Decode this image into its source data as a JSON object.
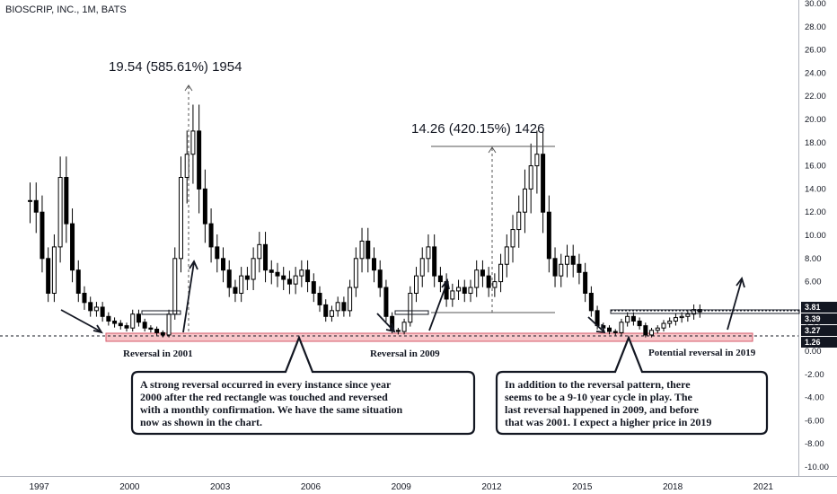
{
  "chart_title": "BIOSCRIP, INC., 1M, BATS",
  "chart_data": {
    "type": "candlestick",
    "title": "BIOSCRIP, INC., 1M, BATS",
    "ylim": [
      -10,
      30
    ],
    "yticks": [
      "30.00",
      "28.00",
      "26.00",
      "24.00",
      "22.00",
      "20.00",
      "18.00",
      "16.00",
      "14.00",
      "12.00",
      "10.00",
      "8.00",
      "6.00",
      "4.00",
      "2.00",
      "0.00",
      "-2.00",
      "-4.00",
      "-6.00",
      "-8.00",
      "-10.00"
    ],
    "xticks": [
      "1997",
      "2000",
      "2003",
      "2006",
      "2009",
      "2012",
      "2015",
      "2018",
      "2021"
    ],
    "series": [
      {
        "values_x": [
          1996.7,
          1996.9,
          1997.1,
          1997.3,
          1997.5,
          1997.7,
          1997.9,
          1998.1,
          1998.3,
          1998.5,
          1998.7,
          1998.9,
          1999.1,
          1999.3,
          1999.5,
          1999.7,
          1999.9,
          2000.1,
          2000.3,
          2000.5,
          2000.7,
          2000.9,
          2001.1,
          2001.3,
          2001.5,
          2001.7,
          2001.9,
          2002.1,
          2002.3,
          2002.5,
          2002.7,
          2002.9,
          2003.1,
          2003.3,
          2003.5,
          2003.7,
          2003.9,
          2004.1,
          2004.3,
          2004.5,
          2004.7,
          2004.9,
          2005.1,
          2005.3,
          2005.5,
          2005.7,
          2005.9,
          2006.1,
          2006.3,
          2006.5,
          2006.7,
          2006.9,
          2007.1,
          2007.3,
          2007.5,
          2007.7,
          2007.9,
          2008.1,
          2008.3,
          2008.5,
          2008.7,
          2008.9,
          2009.1,
          2009.3,
          2009.5,
          2009.7,
          2009.9,
          2010.1,
          2010.3,
          2010.5,
          2010.7,
          2010.9,
          2011.1,
          2011.3,
          2011.5,
          2011.7,
          2011.9,
          2012.1,
          2012.3,
          2012.5,
          2012.7,
          2012.9,
          2013.1,
          2013.3,
          2013.5,
          2013.7,
          2013.9,
          2014.1,
          2014.3,
          2014.5,
          2014.7,
          2014.9,
          2015.1,
          2015.3,
          2015.5,
          2015.7,
          2015.9,
          2016.1,
          2016.3,
          2016.5,
          2016.7,
          2016.9,
          2017.1,
          2017.3,
          2017.5,
          2017.7,
          2017.9,
          2018.1,
          2018.3,
          2018.5,
          2018.7,
          2018.9
        ],
        "values_close": [
          13.0,
          12.0,
          8.0,
          5.0,
          9.0,
          15.0,
          11.0,
          7.0,
          5.0,
          4.2,
          3.5,
          3.8,
          3.0,
          2.6,
          2.4,
          2.2,
          2.0,
          3.2,
          2.5,
          2.0,
          1.9,
          1.6,
          1.4,
          3.2,
          8.0,
          15.0,
          17.0,
          19.0,
          14.0,
          11.0,
          9.0,
          8.0,
          7.0,
          5.5,
          5.0,
          6.5,
          6.2,
          8.0,
          9.2,
          7.0,
          6.8,
          6.5,
          6.2,
          5.8,
          6.5,
          7.0,
          6.0,
          5.0,
          4.0,
          3.0,
          3.5,
          4.2,
          3.5,
          5.5,
          8.0,
          9.5,
          8.0,
          7.0,
          5.5,
          3.0,
          1.8,
          1.7,
          2.5,
          5.0,
          6.5,
          8.0,
          9.0,
          6.5,
          6.0,
          4.5,
          5.2,
          5.5,
          5.0,
          5.5,
          7.0,
          6.5,
          5.5,
          6.0,
          7.5,
          9.0,
          10.5,
          12.0,
          14.0,
          16.0,
          17.0,
          12.0,
          8.0,
          6.5,
          7.5,
          8.2,
          7.5,
          6.8,
          5.0,
          3.5,
          2.2,
          2.0,
          1.7,
          1.6,
          2.5,
          3.0,
          2.6,
          2.2,
          1.4,
          1.8,
          2.0,
          2.4,
          2.6,
          2.9,
          3.0,
          3.2,
          3.6,
          3.4
        ]
      }
    ]
  },
  "measure_2001": "19.54 (585.61%) 1954",
  "measure_2009": "14.26 (420.15%) 1426",
  "reversal_2001": "Reversal in 2001",
  "reversal_2009": "Reversal in 2009",
  "reversal_2019": "Potential reversal in 2019",
  "note_left": [
    "A strong reversal occurred in every instance since year",
    "2000 after the red rectangle was touched and reversed",
    "with a monthly confirmation. We have the same situation",
    "now as shown in the chart."
  ],
  "note_right": [
    "In addition to the reversal pattern, there",
    "seems to be a 9-10 year cycle in play. The",
    "last reversal happened in 2009, and before",
    "that was 2001. I expect a higher price in 2019"
  ],
  "price_badges": [
    "3.81",
    "3.39",
    "3.27",
    "1.26"
  ],
  "colors": {
    "candle": "#000000",
    "support_fill": "#f7c6c9",
    "support_stroke": "#d45a6a",
    "badge": "#131722",
    "grid_text": "#131722"
  }
}
